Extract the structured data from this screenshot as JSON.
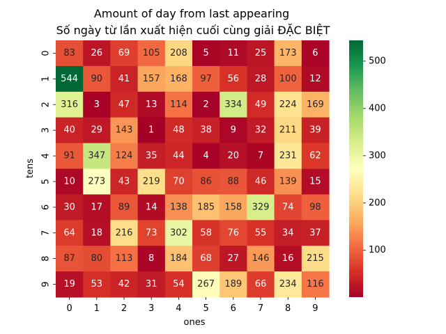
{
  "chart_data": {
    "type": "heatmap",
    "title_lines": [
      "Amount of day from last appearing",
      "Số ngày từ lần xuất hiện cuối cùng giải ĐẶC BIỆT"
    ],
    "xlabel": "ones",
    "ylabel": "tens",
    "x_categories": [
      "0",
      "1",
      "2",
      "3",
      "4",
      "5",
      "6",
      "7",
      "8",
      "9"
    ],
    "y_categories": [
      "0",
      "1",
      "2",
      "3",
      "4",
      "5",
      "6",
      "7",
      "8",
      "9"
    ],
    "values": [
      [
        83,
        26,
        69,
        105,
        208,
        5,
        11,
        25,
        173,
        6
      ],
      [
        544,
        90,
        41,
        157,
        168,
        97,
        56,
        28,
        100,
        12
      ],
      [
        316,
        3,
        47,
        13,
        114,
        2,
        334,
        49,
        224,
        169
      ],
      [
        40,
        29,
        143,
        1,
        48,
        38,
        9,
        32,
        211,
        39
      ],
      [
        91,
        347,
        124,
        35,
        44,
        4,
        20,
        7,
        231,
        62
      ],
      [
        10,
        273,
        43,
        219,
        70,
        86,
        88,
        46,
        139,
        15
      ],
      [
        30,
        17,
        89,
        14,
        138,
        185,
        158,
        329,
        74,
        98
      ],
      [
        64,
        18,
        216,
        73,
        302,
        58,
        76,
        55,
        34,
        37
      ],
      [
        87,
        80,
        113,
        8,
        184,
        68,
        27,
        146,
        16,
        215
      ],
      [
        19,
        53,
        42,
        31,
        54,
        267,
        189,
        66,
        234,
        116
      ]
    ],
    "colormap": "RdYlGn",
    "colormap_stops": [
      "#a50026",
      "#d73027",
      "#f46d43",
      "#fdae61",
      "#fee08b",
      "#ffffbf",
      "#d9ef8b",
      "#a6d96a",
      "#66bd63",
      "#1a9850",
      "#006837"
    ],
    "vmin": 1,
    "vmax": 544,
    "colorbar_ticks": [
      100,
      200,
      300,
      400,
      500
    ]
  }
}
